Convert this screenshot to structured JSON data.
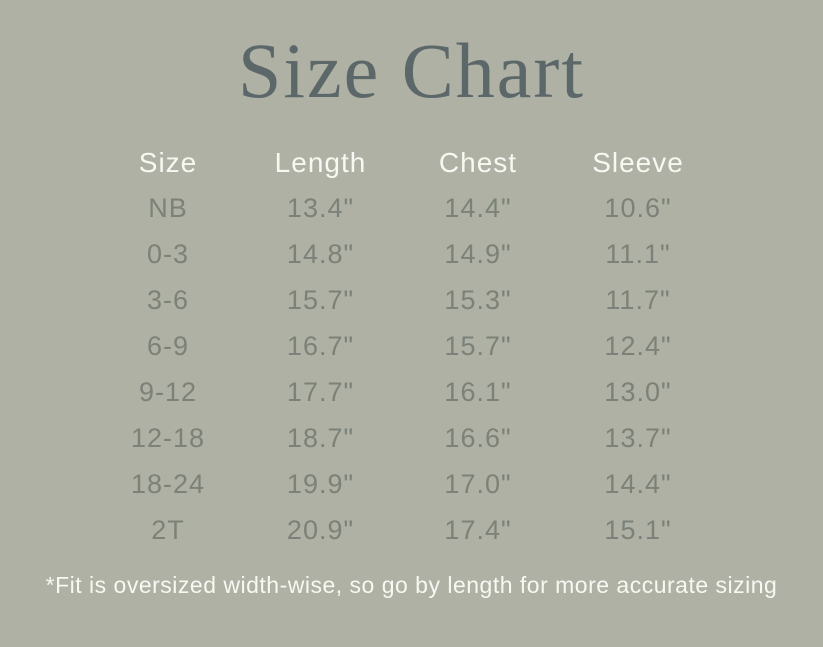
{
  "page": {
    "title": "Size Chart",
    "footnote": "*Fit is oversized width-wise, so go by length for more accurate sizing"
  },
  "chart_data": {
    "type": "table",
    "title": "Size Chart",
    "columns": [
      "Size",
      "Length",
      "Chest",
      "Sleeve"
    ],
    "rows": [
      [
        "NB",
        "13.4\"",
        "14.4\"",
        "10.6\""
      ],
      [
        "0-3",
        "14.8\"",
        "14.9\"",
        "11.1\""
      ],
      [
        "3-6",
        "15.7\"",
        "15.3\"",
        "11.7\""
      ],
      [
        "6-9",
        "16.7\"",
        "15.7\"",
        "12.4\""
      ],
      [
        "9-12",
        "17.7\"",
        "16.1\"",
        "13.0\""
      ],
      [
        "12-18",
        "18.7\"",
        "16.6\"",
        "13.7\""
      ],
      [
        "18-24",
        "19.9\"",
        "17.0\"",
        "14.4\""
      ],
      [
        "2T",
        "20.9\"",
        "17.4\"",
        "15.1\""
      ]
    ],
    "footnote": "*Fit is oversized width-wise, so go by length for more accurate sizing",
    "layout_hints": {
      "units": "inches",
      "header_row": true,
      "grid": "off"
    }
  },
  "colors": {
    "background": "#aeb1a3",
    "title_text": "#5b6769",
    "header_text": "#f7f8f2",
    "data_text": "#7c8279"
  }
}
